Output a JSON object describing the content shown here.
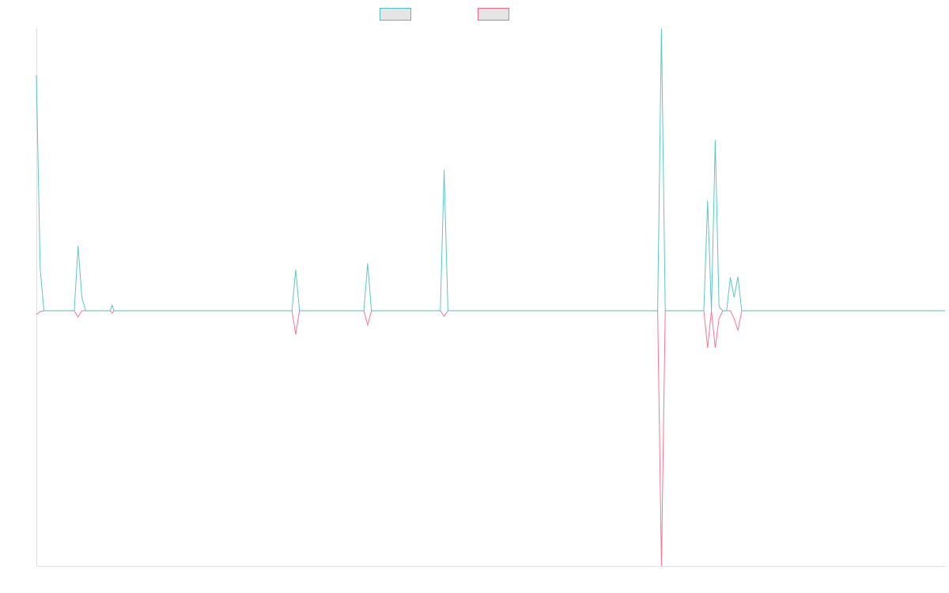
{
  "chart_data": {
    "type": "line",
    "title": "",
    "xlabel": "",
    "ylabel": "",
    "xlim": [
      0,
      240
    ],
    "ylim": [
      -323,
      357
    ],
    "grid": false,
    "legend_placement": "top-center",
    "series": [
      {
        "name": "",
        "color": "#4bc0c0",
        "points": [
          [
            0,
            298
          ],
          [
            1,
            53
          ],
          [
            2,
            0
          ],
          [
            10,
            0
          ],
          [
            11,
            82
          ],
          [
            12,
            17
          ],
          [
            13,
            0
          ],
          [
            19.5,
            0
          ],
          [
            20,
            7
          ],
          [
            20.5,
            0
          ],
          [
            67.5,
            0
          ],
          [
            68.5,
            52
          ],
          [
            69.5,
            0
          ],
          [
            86.5,
            0
          ],
          [
            87.5,
            60
          ],
          [
            88.5,
            0
          ],
          [
            106.7,
            0
          ],
          [
            107.7,
            178
          ],
          [
            108.7,
            0
          ],
          [
            164.1,
            0
          ],
          [
            165.1,
            357
          ],
          [
            166.1,
            0
          ],
          [
            176.3,
            0
          ],
          [
            177.3,
            139
          ],
          [
            178.3,
            0
          ],
          [
            179.3,
            216
          ],
          [
            180.3,
            5
          ],
          [
            181.3,
            0
          ],
          [
            182.3,
            0
          ],
          [
            183.3,
            42
          ],
          [
            184.3,
            17
          ],
          [
            185.3,
            43
          ],
          [
            186.3,
            0
          ],
          [
            240,
            0
          ]
        ]
      },
      {
        "name": "",
        "color": "#ff6384",
        "points": [
          [
            0,
            -5
          ],
          [
            1,
            -1
          ],
          [
            2,
            0
          ],
          [
            10,
            0
          ],
          [
            11,
            -8
          ],
          [
            12,
            0
          ],
          [
            19.5,
            0
          ],
          [
            20,
            -3
          ],
          [
            20.5,
            0
          ],
          [
            67.5,
            0
          ],
          [
            68.5,
            -30
          ],
          [
            69.5,
            0
          ],
          [
            86.5,
            0
          ],
          [
            87.5,
            -18
          ],
          [
            88.5,
            0
          ],
          [
            106.7,
            0
          ],
          [
            107.7,
            -7
          ],
          [
            108.7,
            0
          ],
          [
            164.1,
            0
          ],
          [
            165.1,
            -323
          ],
          [
            166.1,
            0
          ],
          [
            176.3,
            0
          ],
          [
            177.3,
            -47
          ],
          [
            178.3,
            0
          ],
          [
            179.3,
            -47
          ],
          [
            180.3,
            -10
          ],
          [
            181.3,
            0
          ],
          [
            182.3,
            0
          ],
          [
            183.3,
            0
          ],
          [
            184.3,
            -10
          ],
          [
            185.3,
            -25
          ],
          [
            186.3,
            0
          ],
          [
            240,
            0
          ]
        ]
      }
    ]
  }
}
